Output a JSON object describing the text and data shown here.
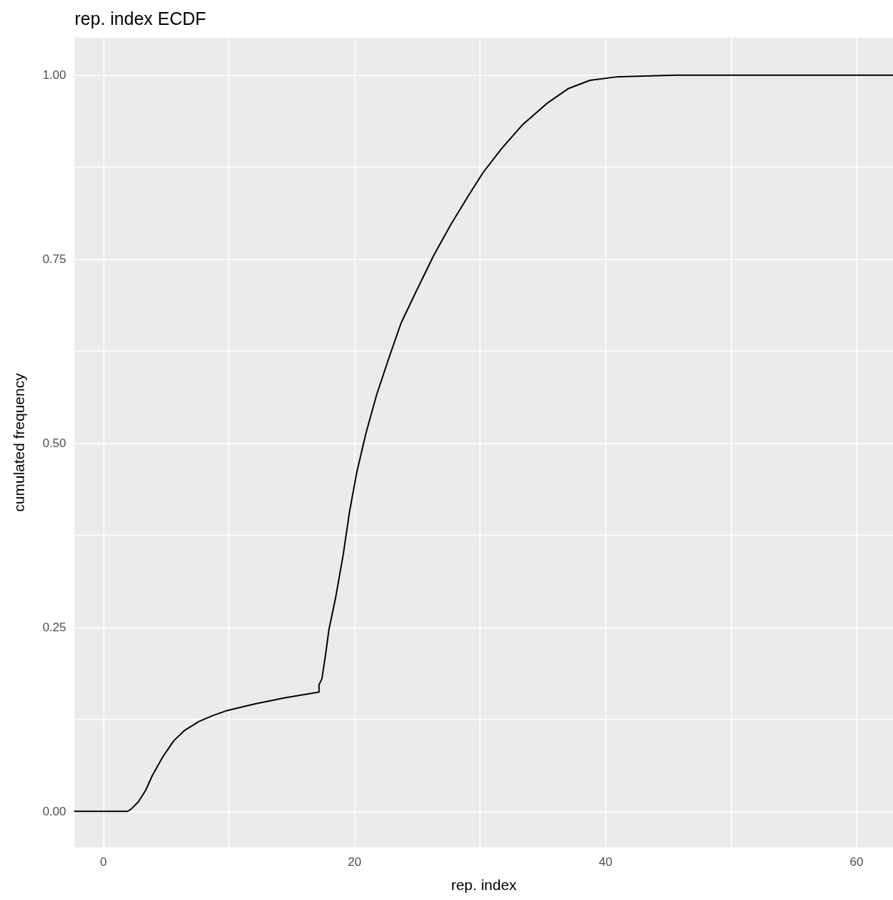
{
  "chart_data": {
    "type": "line",
    "title": "rep. index ECDF",
    "xlabel": "rep. index",
    "ylabel": "cumulated frequency",
    "x": [
      -2.3,
      1.93,
      2.2,
      2.78,
      3.34,
      3.9,
      4.76,
      5.6,
      6.46,
      7.6,
      8.7,
      9.86,
      12.1,
      14.4,
      17.17,
      17.17,
      17.4,
      17.7,
      17.96,
      18.5,
      19.1,
      19.6,
      20.17,
      20.9,
      21.76,
      22.8,
      23.7,
      24.9,
      26.3,
      27.7,
      29.1,
      30.25,
      31.7,
      33.4,
      35.35,
      37.05,
      38.75,
      41.0,
      45.55,
      62.9
    ],
    "series": [
      {
        "color": "#000000",
        "values": [
          0,
          0,
          0.003,
          0.013,
          0.028,
          0.049,
          0.075,
          0.096,
          0.11,
          0.122,
          0.13,
          0.137,
          0.146,
          0.154,
          0.162,
          0.172,
          0.18,
          0.214,
          0.247,
          0.291,
          0.349,
          0.407,
          0.46,
          0.513,
          0.566,
          0.619,
          0.663,
          0.706,
          0.755,
          0.798,
          0.837,
          0.868,
          0.9,
          0.933,
          0.962,
          0.982,
          0.993,
          0.998,
          1.0,
          1.0
        ]
      }
    ],
    "xlim": [
      -2.3,
      62.9
    ],
    "ylim": [
      -0.049,
      1.051
    ],
    "xticks": [
      0,
      {
        "value": 10,
        "label": null
      },
      20,
      {
        "value": 30,
        "label": null
      },
      40,
      {
        "value": 50,
        "label": null
      },
      60
    ],
    "yticks": [
      {
        "value": 0,
        "label": "0.00"
      },
      {
        "value": 0.125,
        "label": null
      },
      {
        "value": 0.25,
        "label": "0.25"
      },
      {
        "value": 0.375,
        "label": null
      },
      {
        "value": 0.5,
        "label": "0.50"
      },
      {
        "value": 0.625,
        "label": null
      },
      {
        "value": 0.75,
        "label": "0.75"
      },
      {
        "value": 0.875,
        "label": null
      },
      {
        "value": 1,
        "label": "1.00"
      }
    ],
    "grid": true,
    "marker": "none",
    "line_style": "solid"
  }
}
